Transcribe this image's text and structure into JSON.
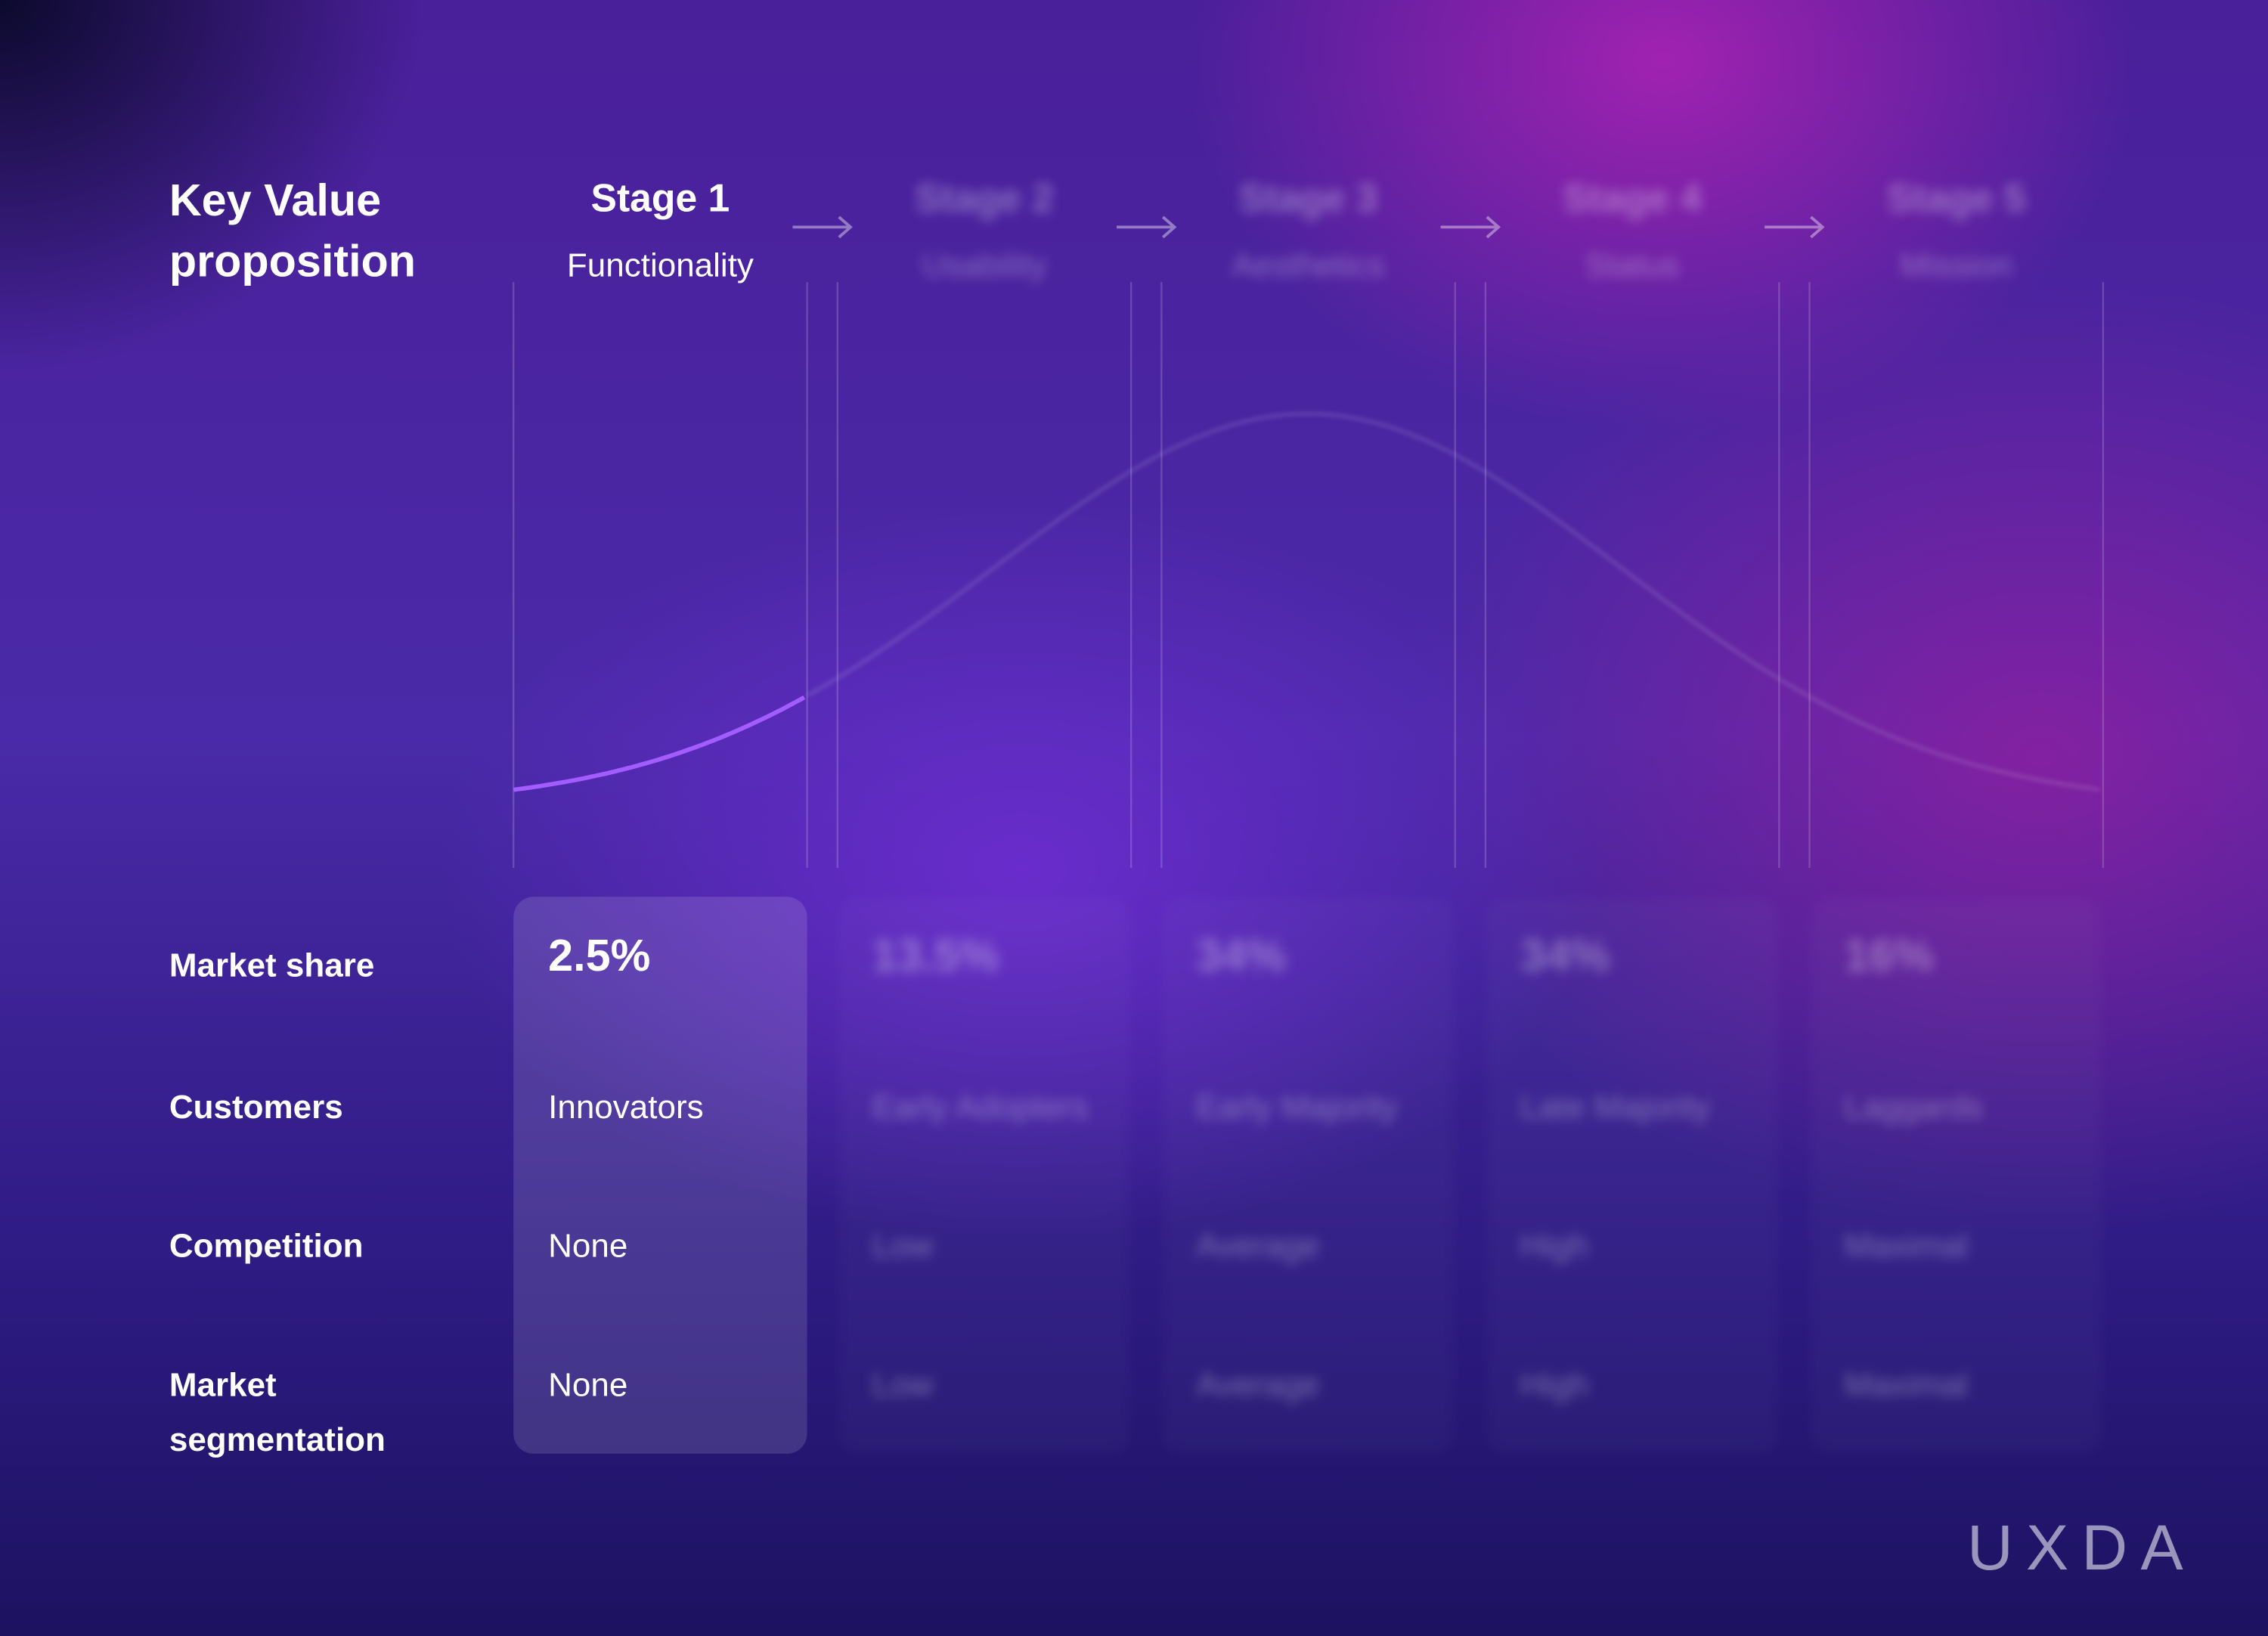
{
  "header": {
    "title": "Key Value proposition"
  },
  "row_labels": [
    "Market share",
    "Customers",
    "Competition",
    "Market segmentation"
  ],
  "stages": [
    {
      "title": "Stage 1",
      "subtitle": "Functionality",
      "market_share": "2.5%",
      "customers": "Innovators",
      "competition": "None",
      "segmentation": "None"
    },
    {
      "title": "Stage 2",
      "subtitle": "Usability",
      "market_share": "13.5%",
      "customers": "Early Adopters",
      "competition": "Low",
      "segmentation": "Low"
    },
    {
      "title": "Stage 3",
      "subtitle": "Aesthetics",
      "market_share": "34%",
      "customers": "Early Majority",
      "competition": "Average",
      "segmentation": "Average"
    },
    {
      "title": "Stage 4",
      "subtitle": "Status",
      "market_share": "34%",
      "customers": "Late Majority",
      "competition": "High",
      "segmentation": "High"
    },
    {
      "title": "Stage 5",
      "subtitle": "Mission",
      "market_share": "16%",
      "customers": "Laggards",
      "competition": "Maximal",
      "segmentation": "Maximal"
    }
  ],
  "logo": "UXDA"
}
